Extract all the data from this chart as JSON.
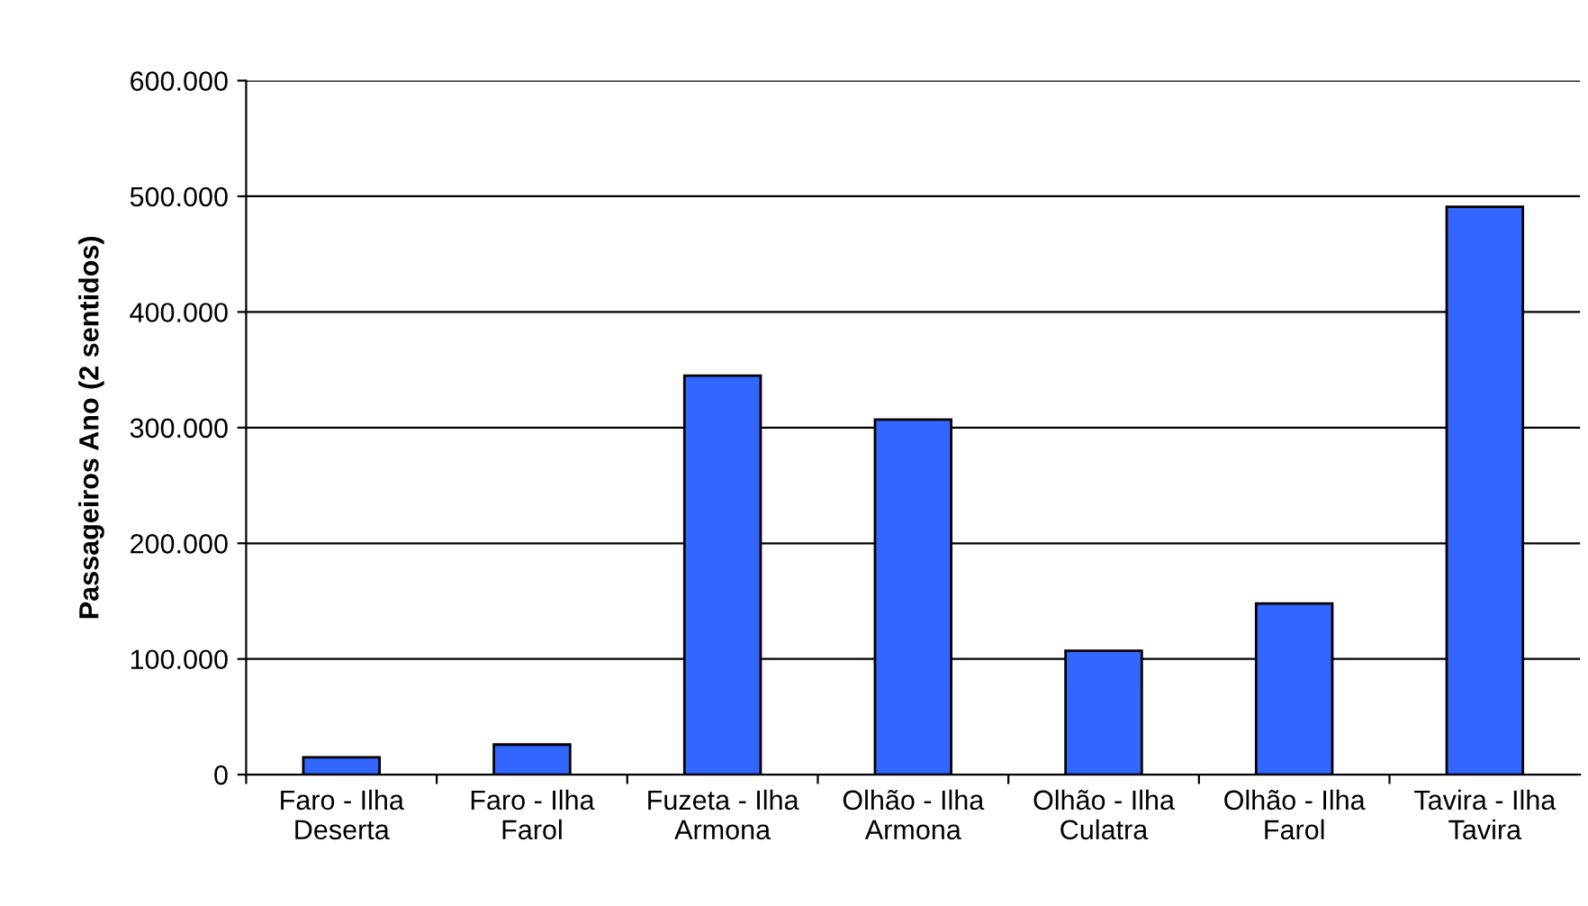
{
  "chart_data": {
    "type": "bar",
    "ylabel": "Passageiros Ano (2 sentidos)",
    "categories": [
      "Faro - Ilha\nDeserta",
      "Faro - Ilha\nFarol",
      "Fuzeta - Ilha\nArmona",
      "Olhão - Ilha\nArmona",
      "Olhão - Ilha\nCulatra",
      "Olhão - Ilha\nFarol",
      "Tavira - Ilha\nTavira"
    ],
    "values": [
      15000,
      26000,
      345000,
      307000,
      107000,
      148000,
      491000
    ],
    "color": "#3366ff",
    "ylim": [
      0,
      600000
    ],
    "yticks": [
      0,
      {
        "value": 100000,
        "label": "100.000"
      },
      {
        "value": 200000,
        "label": "200.000"
      },
      {
        "value": 300000,
        "label": "300.000"
      },
      {
        "value": 400000,
        "label": "400.000"
      },
      {
        "value": 500000,
        "label": "500.000"
      },
      {
        "value": 600000,
        "label": "600.000"
      }
    ],
    "grid": "y",
    "legend": false
  }
}
